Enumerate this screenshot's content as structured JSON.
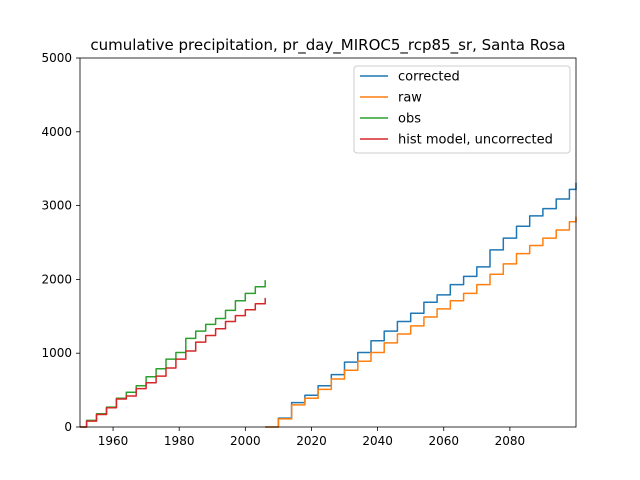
{
  "chart_data": {
    "type": "line",
    "title": "cumulative precipitation, pr_day_MIROC5_rcp85_sr, Santa Rosa",
    "xlabel": "",
    "ylabel": "",
    "xlim": [
      1950,
      2100
    ],
    "ylim": [
      0,
      5000
    ],
    "x_ticks": [
      1960,
      1980,
      2000,
      2020,
      2040,
      2060,
      2080
    ],
    "y_ticks": [
      0,
      1000,
      2000,
      3000,
      4000,
      5000
    ],
    "grid": false,
    "legend": {
      "position": "upper-right"
    },
    "series": [
      {
        "name": "corrected",
        "color": "#1f77b4",
        "x": [
          2006,
          2010,
          2014,
          2018,
          2022,
          2026,
          2030,
          2034,
          2038,
          2042,
          2046,
          2050,
          2054,
          2058,
          2062,
          2066,
          2070,
          2074,
          2078,
          2082,
          2086,
          2090,
          2094,
          2098,
          2100
        ],
        "y": [
          0,
          120,
          330,
          430,
          560,
          710,
          880,
          1010,
          1170,
          1300,
          1430,
          1540,
          1690,
          1790,
          1930,
          2040,
          2170,
          2400,
          2560,
          2720,
          2860,
          2960,
          3090,
          3220,
          3310
        ]
      },
      {
        "name": "raw",
        "color": "#ff7f0e",
        "x": [
          2006,
          2010,
          2014,
          2018,
          2022,
          2026,
          2030,
          2034,
          2038,
          2042,
          2046,
          2050,
          2054,
          2058,
          2062,
          2066,
          2070,
          2074,
          2078,
          2082,
          2086,
          2090,
          2094,
          2098,
          2100
        ],
        "y": [
          0,
          110,
          300,
          390,
          510,
          650,
          770,
          890,
          1010,
          1140,
          1260,
          1370,
          1490,
          1600,
          1710,
          1810,
          1930,
          2070,
          2210,
          2350,
          2460,
          2560,
          2670,
          2780,
          2850
        ]
      },
      {
        "name": "obs",
        "color": "#2ca02c",
        "x": [
          1950,
          1952,
          1955,
          1958,
          1961,
          1964,
          1967,
          1970,
          1973,
          1976,
          1979,
          1982,
          1985,
          1988,
          1991,
          1994,
          1997,
          2000,
          2003,
          2006
        ],
        "y": [
          0,
          90,
          180,
          270,
          390,
          470,
          560,
          680,
          790,
          920,
          1010,
          1200,
          1300,
          1390,
          1470,
          1580,
          1710,
          1810,
          1900,
          1990
        ]
      },
      {
        "name": "hist model, uncorrected",
        "color": "#d62728",
        "x": [
          1950,
          1952,
          1955,
          1958,
          1961,
          1964,
          1967,
          1970,
          1973,
          1976,
          1979,
          1982,
          1985,
          1988,
          1991,
          1994,
          1997,
          2000,
          2003,
          2006
        ],
        "y": [
          0,
          80,
          170,
          260,
          380,
          420,
          520,
          600,
          690,
          800,
          920,
          1030,
          1150,
          1240,
          1330,
          1430,
          1510,
          1590,
          1670,
          1750
        ]
      }
    ]
  }
}
